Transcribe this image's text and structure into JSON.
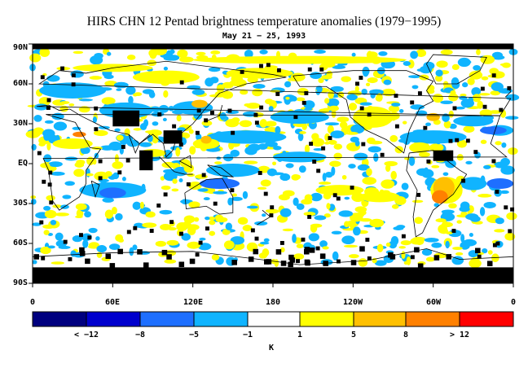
{
  "title": "HIRS CHN 12 Pentad brightness temperature anomalies (1979−1995)",
  "subtitle": "May 21 − 25, 1993",
  "y_axis_labels": [
    "90N",
    "60N",
    "30N",
    "EQ",
    "30S",
    "60S",
    "90S"
  ],
  "x_axis_labels": [
    "0",
    "60E",
    "120E",
    "180",
    "120W",
    "60W",
    "0"
  ],
  "colorbar": {
    "labels": [
      "< −12",
      "−8",
      "−5",
      "−1",
      "1",
      "5",
      "8",
      "> 12"
    ],
    "units": "K",
    "colors": [
      "#00007f",
      "#0000cd",
      "#1e6fff",
      "#10b4ff",
      "#ffffff",
      "#ffff00",
      "#ffc000",
      "#ff8000",
      "#ff0000"
    ]
  },
  "map_colors": {
    "missing": "#000000",
    "background": "#ffffff",
    "coastline": "#000000"
  }
}
